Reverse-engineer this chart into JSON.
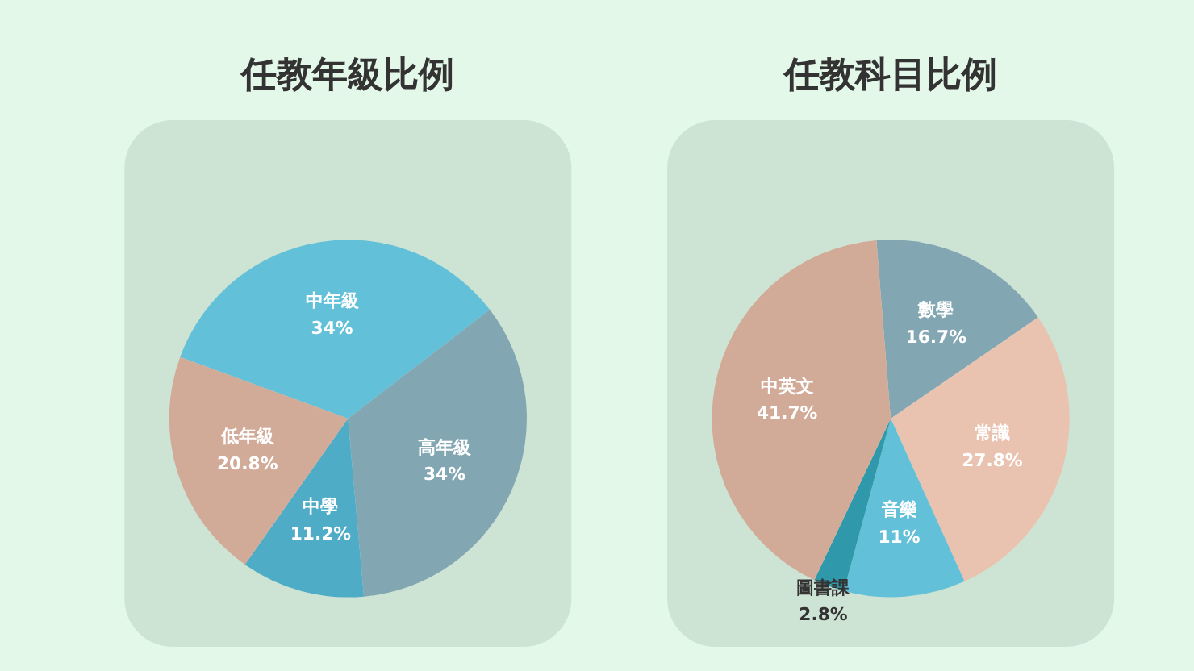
{
  "chart_data": [
    {
      "type": "pie",
      "title": "任教年級比例",
      "categories": [
        "中年級",
        "高年級",
        "中學",
        "低年級"
      ],
      "values": [
        34,
        34,
        11.2,
        20.8
      ],
      "value_labels": [
        "34%",
        "34%",
        "11.2%",
        "20.8%"
      ],
      "colors": [
        "#62c0d8",
        "#82a6b2",
        "#4eacc6",
        "#d2aa98"
      ],
      "legend": false
    },
    {
      "type": "pie",
      "title": "任教科目比例",
      "categories": [
        "數學",
        "常識",
        "音樂",
        "圖書課",
        "中英文"
      ],
      "values": [
        16.7,
        27.8,
        11,
        2.8,
        41.7
      ],
      "value_labels": [
        "16.7%",
        "27.8%",
        "11%",
        "2.8%",
        "41.7%"
      ],
      "colors": [
        "#82a6b2",
        "#e9c3b0",
        "#62c0d8",
        "#2f98aa",
        "#d2aa98"
      ],
      "legend": false
    }
  ]
}
